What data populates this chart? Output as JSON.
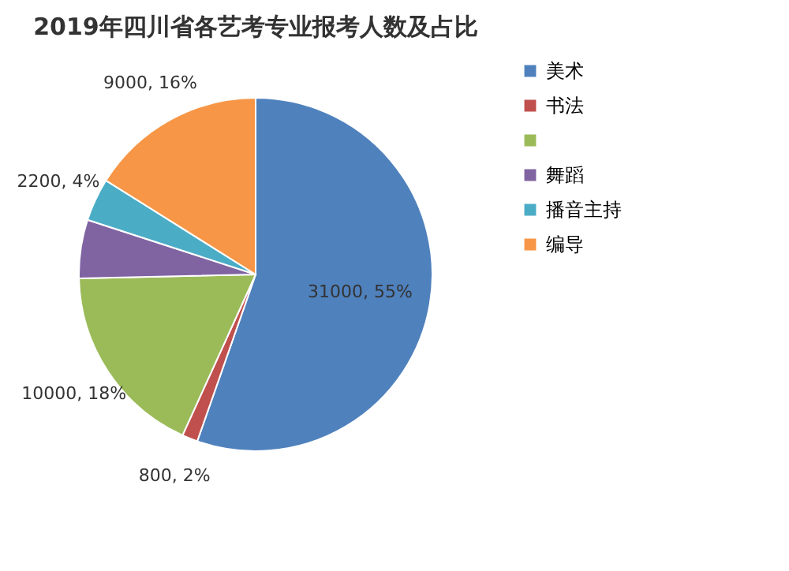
{
  "chart_data": {
    "type": "pie",
    "title": "2019年四川省各艺考专业报考人数及占比",
    "categories": [
      "美术",
      "书法",
      null,
      "舞蹈",
      "播音主持",
      "编导"
    ],
    "values": [
      31000,
      800,
      10000,
      3000,
      2200,
      9000
    ],
    "colors": [
      "#4f81bd",
      "#c0504d",
      "#9bbb59",
      "#8064a2",
      "#4bacc6",
      "#f79646"
    ],
    "value_labels": [
      "31000, 55%",
      "800, 2%",
      "10000, 18%",
      null,
      "2200, 4%",
      "9000, 16%"
    ],
    "legend": "right"
  }
}
